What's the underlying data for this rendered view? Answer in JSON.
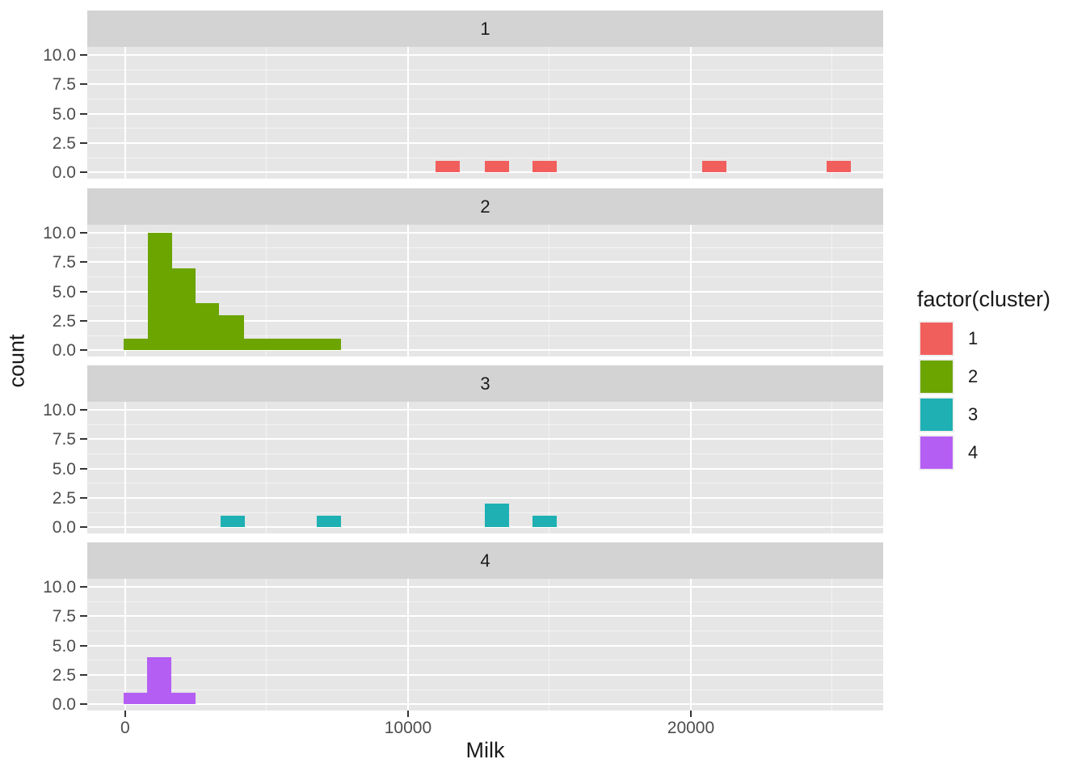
{
  "figure": {
    "x_axis_title": "Milk",
    "y_axis_title": "count",
    "background": "#ffffff",
    "panel_background": "#e6e6e6",
    "strip_background": "#d3d3d3",
    "gridline_color": "#ffffff"
  },
  "legend": {
    "title": "factor(cluster)",
    "items": [
      {
        "label": "1",
        "color": "#f15f5d"
      },
      {
        "label": "2",
        "color": "#6ca400"
      },
      {
        "label": "3",
        "color": "#1eb0b3"
      },
      {
        "label": "4",
        "color": "#b55ef4"
      }
    ]
  },
  "chart_data": {
    "type": "bar",
    "subtype": "faceted_histogram",
    "xlabel": "Milk",
    "ylabel": "count",
    "legend_title": "factor(cluster)",
    "xlim": [
      -1340,
      26800
    ],
    "ylim": [
      -0.53,
      10.7
    ],
    "x_ticks": [
      0,
      10000,
      20000
    ],
    "x_tick_labels": [
      "0",
      "10000",
      "20000"
    ],
    "x_minor_gridlines": [
      5000,
      15000,
      25000
    ],
    "y_ticks": [
      10.0,
      7.5,
      5.0,
      2.5,
      0.0
    ],
    "y_tick_labels": [
      "10.0",
      "7.5",
      "5.0",
      "2.5",
      "0.0"
    ],
    "y_minor_gridlines": [
      1.25,
      3.75,
      6.25,
      8.75
    ],
    "grid": true,
    "legend_position": "right",
    "facets": [
      {
        "label": "1",
        "cluster": "1",
        "color": "#f15f5d",
        "bins": [
          {
            "x0": 10980,
            "x1": 11840,
            "count": 1
          },
          {
            "x0": 12710,
            "x1": 13570,
            "count": 1
          },
          {
            "x0": 14400,
            "x1": 15260,
            "count": 1
          },
          {
            "x0": 20400,
            "x1": 21260,
            "count": 1
          },
          {
            "x0": 24810,
            "x1": 25670,
            "count": 1
          }
        ]
      },
      {
        "label": "2",
        "cluster": "2",
        "color": "#6ca400",
        "bins": [
          {
            "x0": -60,
            "x1": 790,
            "count": 1
          },
          {
            "x0": 790,
            "x1": 1660,
            "count": 10
          },
          {
            "x0": 1660,
            "x1": 2480,
            "count": 7
          },
          {
            "x0": 2480,
            "x1": 3310,
            "count": 4
          },
          {
            "x0": 3310,
            "x1": 4190,
            "count": 3
          },
          {
            "x0": 4190,
            "x1": 7620,
            "count": 1
          }
        ]
      },
      {
        "label": "3",
        "cluster": "3",
        "color": "#1eb0b3",
        "bins": [
          {
            "x0": 3360,
            "x1": 4220,
            "count": 1
          },
          {
            "x0": 6760,
            "x1": 7620,
            "count": 1
          },
          {
            "x0": 12710,
            "x1": 13570,
            "count": 2
          },
          {
            "x0": 14410,
            "x1": 15270,
            "count": 1
          }
        ]
      },
      {
        "label": "4",
        "cluster": "4",
        "color": "#b55ef4",
        "bins": [
          {
            "x0": -60,
            "x1": 780,
            "count": 1
          },
          {
            "x0": 780,
            "x1": 1640,
            "count": 4
          },
          {
            "x0": 1640,
            "x1": 2480,
            "count": 1
          }
        ]
      }
    ]
  }
}
